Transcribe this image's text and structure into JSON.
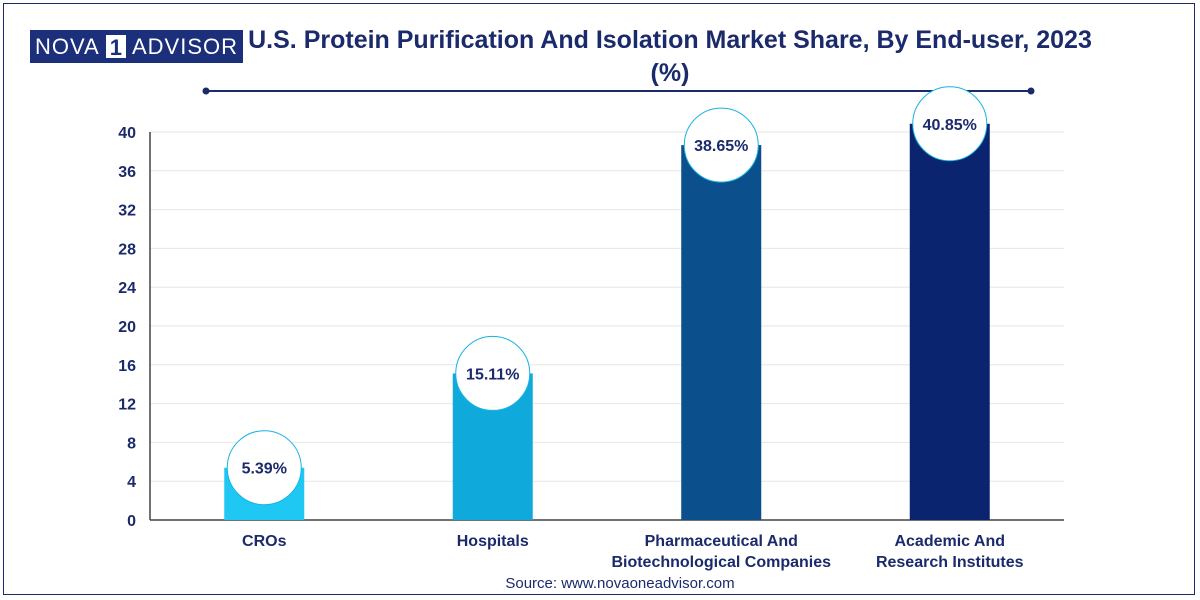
{
  "brand": {
    "logo_left": "NOVA",
    "logo_mid": "1",
    "logo_right": "ADVISOR"
  },
  "source": "Source: www.novaoneadvisor.com",
  "colors": {
    "text": "#1b2a6b",
    "divider": "#1b2a6b",
    "grid": "#e6e6e6"
  },
  "chart_data": {
    "type": "bar",
    "title": "U.S. Protein Purification And Isolation Market Share, By End-user, 2023 (%)",
    "categories": [
      [
        "CROs"
      ],
      [
        "Hospitals"
      ],
      [
        "Pharmaceutical And",
        "Biotechnological Companies"
      ],
      [
        "Academic And",
        "Research Institutes"
      ]
    ],
    "values": [
      5.39,
      15.11,
      38.65,
      40.85
    ],
    "data_labels": [
      "5.39%",
      "15.11%",
      "38.65%",
      "40.85%"
    ],
    "bar_colors": [
      "#1ec8f3",
      "#10a9dc",
      "#0b4f8c",
      "#0b2470"
    ],
    "ylim": [
      0,
      40
    ],
    "yticks": [
      0,
      4,
      8,
      12,
      16,
      20,
      24,
      28,
      32,
      36,
      40
    ],
    "grid": true,
    "xlabel": "",
    "ylabel": ""
  }
}
